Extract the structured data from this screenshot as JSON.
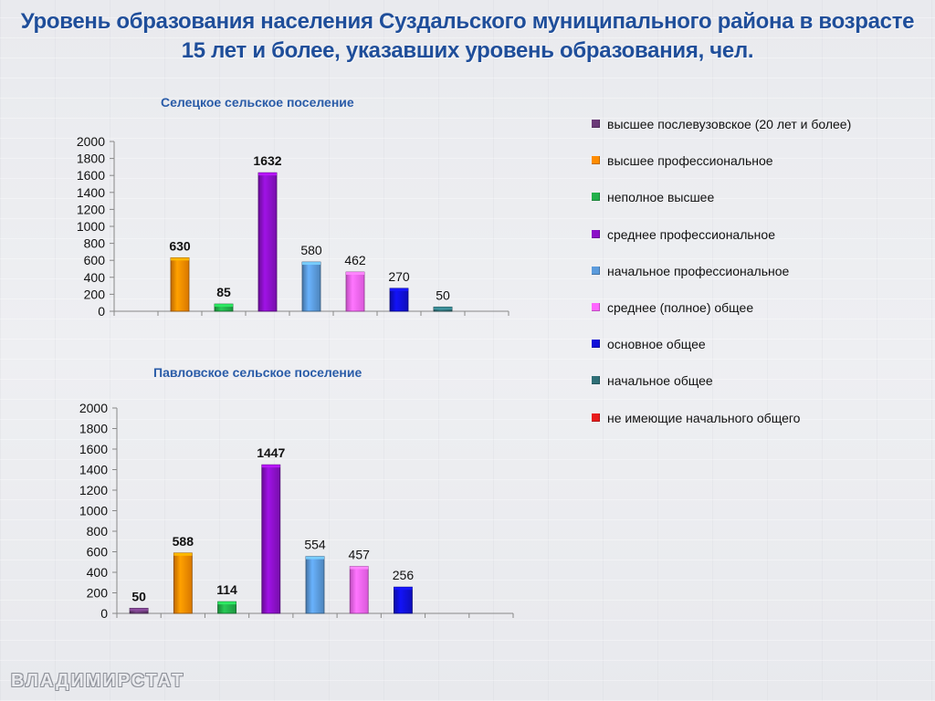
{
  "page": {
    "title": "Уровень образования населения Суздальского муниципального района в возрасте 15 лет и более, указавших уровень образования, чел.",
    "brand": "ВЛАДИМИРСТАТ"
  },
  "legend": {
    "items": [
      {
        "label": "высшее послевузовское  (20 лет и более)",
        "color": "#6a3a78"
      },
      {
        "label": "высшее профессиональное",
        "color": "#ff8c00"
      },
      {
        "label": "неполное высшее",
        "color": "#22b04b"
      },
      {
        "label": "среднее профессиональное",
        "color": "#8b10c8"
      },
      {
        "label": "начальное профессиональное",
        "color": "#5b9bdc"
      },
      {
        "label": "среднее (полное) общее",
        "color": "#ff66ff"
      },
      {
        "label": "основное общее",
        "color": "#1010d8"
      },
      {
        "label": "начальное общее",
        "color": "#2f6f77"
      },
      {
        "label": "не имеющие начального общего",
        "color": "#e81c1c"
      }
    ]
  },
  "chart_data": [
    {
      "type": "bar",
      "title": "Селецкое сельское поселение",
      "categories": [
        "высшее послевузовское  (20 лет и более)",
        "высшее профессиональное",
        "неполное высшее",
        "среднее профессиональное",
        "начальное профессиональное",
        "среднее (полное) общее",
        "основное общее",
        "начальное общее",
        "не имеющие начального общего"
      ],
      "values": [
        0,
        630,
        85,
        1632,
        580,
        462,
        270,
        50,
        0
      ],
      "value_labels": [
        "",
        "630",
        "85",
        "1632",
        "580",
        "462",
        "270",
        "50",
        ""
      ],
      "bold_labels": [
        false,
        true,
        true,
        true,
        false,
        false,
        false,
        false,
        false
      ],
      "ylim": [
        0,
        2000
      ],
      "yticks": [
        "0",
        "200",
        "400",
        "600",
        "800",
        "1000",
        "1200",
        "1400",
        "1600",
        "1800",
        "2000"
      ],
      "legend_position": "right"
    },
    {
      "type": "bar",
      "title": "Павловское  сельское  поселение",
      "categories": [
        "высшее послевузовское  (20 лет и более)",
        "высшее профессиональное",
        "неполное высшее",
        "среднее профессиональное",
        "начальное профессиональное",
        "среднее (полное) общее",
        "основное общее",
        "начальное общее",
        "не имеющие начального общего"
      ],
      "values": [
        50,
        588,
        114,
        1447,
        554,
        457,
        256,
        0,
        0
      ],
      "value_labels": [
        "50",
        "588",
        "114",
        "1447",
        "554",
        "457",
        "256",
        "",
        ""
      ],
      "bold_labels": [
        true,
        true,
        true,
        true,
        false,
        false,
        false,
        false,
        false
      ],
      "ylim": [
        0,
        2000
      ],
      "yticks": [
        "0",
        "200",
        "400",
        "600",
        "800",
        "1000",
        "1200",
        "1400",
        "1600",
        "1800",
        "2000"
      ],
      "legend_position": "right"
    }
  ]
}
